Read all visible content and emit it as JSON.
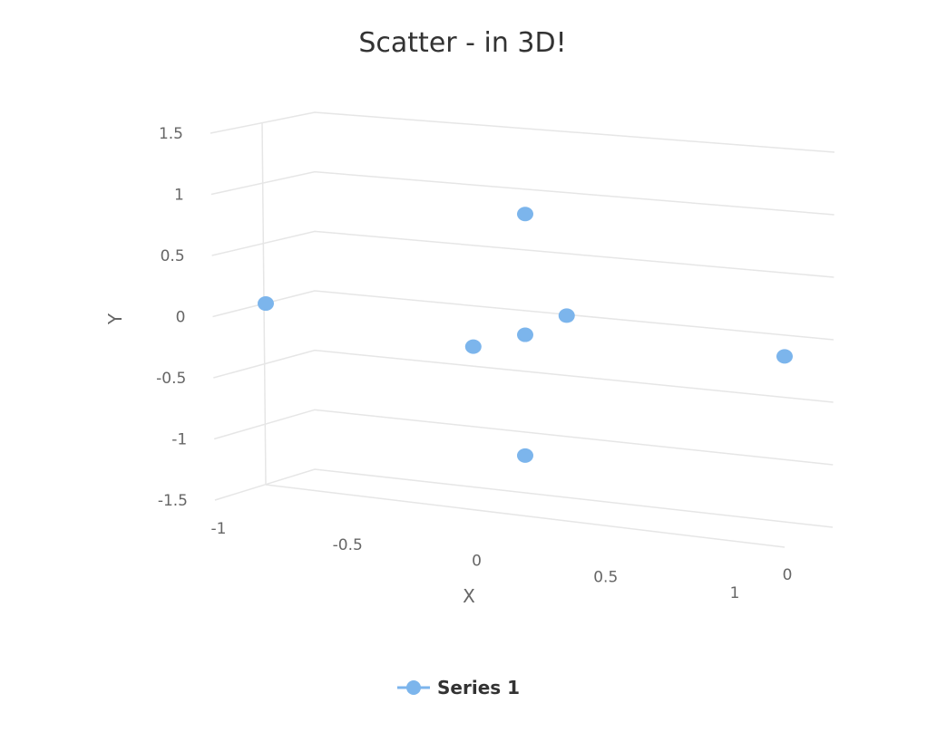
{
  "chart_data": {
    "type": "scatter",
    "title": "Scatter - in 3D!",
    "xlabel": "X",
    "ylabel": "Y",
    "xlim": [
      -1,
      1
    ],
    "ylim": [
      -1.5,
      1.5
    ],
    "x_ticks": [
      "-1",
      "-0.5",
      "0",
      "0.5",
      "1"
    ],
    "y_ticks": [
      "1.5",
      "1",
      "0.5",
      "0",
      "-0.5",
      "-1",
      "-1.5"
    ],
    "z_ticks": [
      "0"
    ],
    "grid": true,
    "legend": "bottom-center",
    "series": [
      {
        "name": "Series 1",
        "color": "#7cb5ec",
        "points": [
          {
            "x": -1,
            "y": 0
          },
          {
            "x": 0,
            "y": 1
          },
          {
            "x": -0.2,
            "y": -0.15
          },
          {
            "x": 0,
            "y": 0
          },
          {
            "x": 0.16,
            "y": 0.2
          },
          {
            "x": 1,
            "y": 0.08
          },
          {
            "x": 0,
            "y": -1
          }
        ]
      }
    ]
  }
}
